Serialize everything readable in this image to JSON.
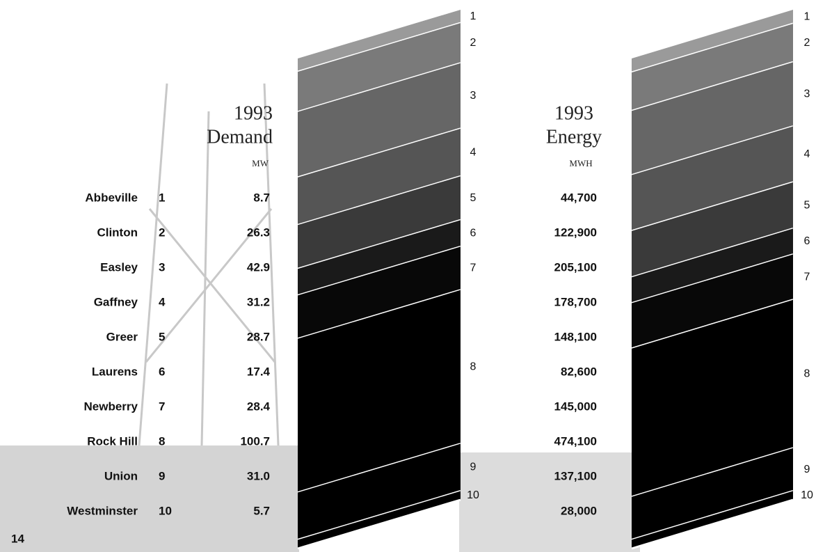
{
  "page_number": 14,
  "chart_data": [
    {
      "type": "stacked-band",
      "title": "1993",
      "subtitle": "Demand",
      "unit": "MW",
      "categories": [
        "Abbeville",
        "Clinton",
        "Easley",
        "Gaffney",
        "Greer",
        "Laurens",
        "Newberry",
        "Rock Hill",
        "Union",
        "Westminster"
      ],
      "ranks": [
        1,
        2,
        3,
        4,
        5,
        6,
        7,
        8,
        9,
        10
      ],
      "values": [
        8.7,
        26.3,
        42.9,
        31.2,
        28.7,
        17.4,
        28.4,
        100.7,
        31,
        5.7
      ],
      "value_labels": [
        "8.7",
        "26.3",
        "42.9",
        "31.2",
        "28.7",
        "17.4",
        "28.4",
        "100.7",
        "31.0",
        "5.7"
      ],
      "colors": [
        "#9a9a9a",
        "#7a7a7a",
        "#666",
        "#555",
        "#3a3a3a",
        "#1a1a1a",
        "#080808",
        "#000",
        "#000",
        "#000"
      ]
    },
    {
      "type": "stacked-band",
      "title": "1993",
      "subtitle": "Energy",
      "unit": "MWH",
      "ranks": [
        1,
        2,
        3,
        4,
        5,
        6,
        7,
        8,
        9,
        10
      ],
      "values": [
        44700,
        122900,
        205100,
        178700,
        148100,
        82600,
        145000,
        474100,
        137100,
        28000
      ],
      "value_labels": [
        "44,700",
        "122,900",
        "205,100",
        "178,700",
        "148,100",
        "82,600",
        "145,000",
        "474,100",
        "137,100",
        "28,000"
      ],
      "colors": [
        "#9a9a9a",
        "#7a7a7a",
        "#666",
        "#555",
        "#3a3a3a",
        "#1a1a1a",
        "#080808",
        "#000",
        "#000",
        "#000"
      ]
    }
  ]
}
